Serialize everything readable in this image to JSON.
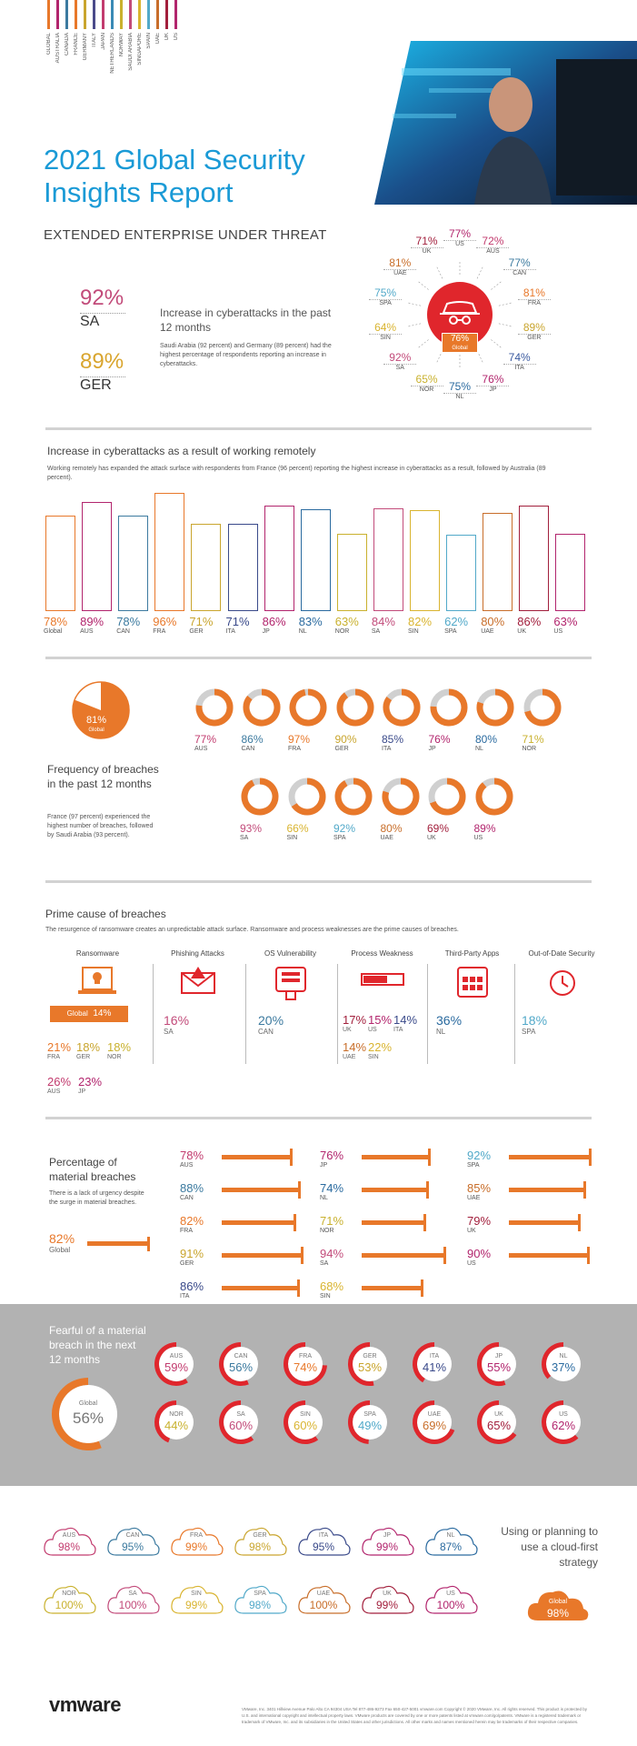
{
  "header": {
    "title_line1": "2021 Global Security",
    "title_line2": "Insights Report",
    "subtitle": "EXTENDED ENTERPRISE UNDER THREAT",
    "country_list": [
      "GLOBAL",
      "AUSTRALIA",
      "CANADA",
      "FRANCE",
      "GERMANY",
      "ITALY",
      "JAPAN",
      "NETHERLANDS",
      "NORWAY",
      "SAUDI ARABIA",
      "SINGAPORE",
      "SPAIN",
      "UAE",
      "UK",
      "US"
    ],
    "stripe_colors": [
      "#e8782a",
      "#b2256d",
      "#3c7a9f",
      "#e8782a",
      "#c9a52e",
      "#4a4a8a",
      "#c23b6e",
      "#3a8ab5",
      "#c9b12e",
      "#c24b7a",
      "#d9b430",
      "#52a9c9",
      "#c86e2a",
      "#a21f3c",
      "#b2256d"
    ]
  },
  "intro": {
    "stat1_value": "92%",
    "stat1_label": "SA",
    "stat2_value": "89%",
    "stat2_label": "GER",
    "headline": "Increase in cyberattacks in the past 12 months",
    "body": "Saudi Arabia (92 percent) and Germany (89 percent) had the highest percentage of respondents reporting an increase in cyberattacks.",
    "center_value": "76%",
    "center_label": "Global",
    "ring": [
      {
        "v": "77%",
        "c": "US",
        "color": "#b2256d"
      },
      {
        "v": "72%",
        "c": "AUS",
        "color": "#c23b6e"
      },
      {
        "v": "77%",
        "c": "CAN",
        "color": "#3c7a9f"
      },
      {
        "v": "81%",
        "c": "FRA",
        "color": "#e8782a"
      },
      {
        "v": "89%",
        "c": "GER",
        "color": "#c9a52e"
      },
      {
        "v": "74%",
        "c": "ITA",
        "color": "#3a5a9f"
      },
      {
        "v": "76%",
        "c": "JP",
        "color": "#b2256d"
      },
      {
        "v": "75%",
        "c": "NL",
        "color": "#2a6a9f"
      },
      {
        "v": "65%",
        "c": "NOR",
        "color": "#c9b12e"
      },
      {
        "v": "92%",
        "c": "SA",
        "color": "#c24b7a"
      },
      {
        "v": "64%",
        "c": "SIN",
        "color": "#d9b430"
      },
      {
        "v": "75%",
        "c": "SPA",
        "color": "#52a9c9"
      },
      {
        "v": "81%",
        "c": "UAE",
        "color": "#c86e2a"
      },
      {
        "v": "71%",
        "c": "UK",
        "color": "#a21f3c"
      }
    ]
  },
  "remote": {
    "title": "Increase in cyberattacks as a result of working remotely",
    "body": "Working remotely has expanded the attack surface with respondents from France (96 percent) reporting the highest increase in cyberattacks as a result, followed by Australia (89 percent).",
    "bars": [
      {
        "v": "78%",
        "n": 78,
        "c": "Global",
        "color": "#e8782a"
      },
      {
        "v": "89%",
        "n": 89,
        "c": "AUS",
        "color": "#b2256d"
      },
      {
        "v": "78%",
        "n": 78,
        "c": "CAN",
        "color": "#3c7a9f"
      },
      {
        "v": "96%",
        "n": 96,
        "c": "FRA",
        "color": "#e8782a"
      },
      {
        "v": "71%",
        "n": 71,
        "c": "GER",
        "color": "#c9a52e"
      },
      {
        "v": "71%",
        "n": 71,
        "c": "ITA",
        "color": "#3a4a8a"
      },
      {
        "v": "86%",
        "n": 86,
        "c": "JP",
        "color": "#b2256d"
      },
      {
        "v": "83%",
        "n": 83,
        "c": "NL",
        "color": "#2a6a9f"
      },
      {
        "v": "63%",
        "n": 63,
        "c": "NOR",
        "color": "#c9b12e"
      },
      {
        "v": "84%",
        "n": 84,
        "c": "SA",
        "color": "#c24b7a"
      },
      {
        "v": "82%",
        "n": 82,
        "c": "SIN",
        "color": "#d9b430"
      },
      {
        "v": "62%",
        "n": 62,
        "c": "SPA",
        "color": "#52a9c9"
      },
      {
        "v": "80%",
        "n": 80,
        "c": "UAE",
        "color": "#c86e2a"
      },
      {
        "v": "86%",
        "n": 86,
        "c": "UK",
        "color": "#a21f3c"
      },
      {
        "v": "63%",
        "n": 63,
        "c": "US",
        "color": "#b2256d"
      }
    ]
  },
  "breaches": {
    "global_value": "81%",
    "global_label": "Global",
    "global_n": 81,
    "title": "Frequency of breaches in the past 12 months",
    "body": "France (97 percent) experienced the highest number of breaches, followed by Saudi Arabia (93 percent).",
    "row1": [
      {
        "v": "77%",
        "n": 77,
        "c": "AUS",
        "color": "#c23b6e"
      },
      {
        "v": "86%",
        "n": 86,
        "c": "CAN",
        "color": "#3c7a9f"
      },
      {
        "v": "97%",
        "n": 97,
        "c": "FRA",
        "color": "#e8782a"
      },
      {
        "v": "90%",
        "n": 90,
        "c": "GER",
        "color": "#c9a52e"
      },
      {
        "v": "85%",
        "n": 85,
        "c": "ITA",
        "color": "#3a4a8a"
      },
      {
        "v": "76%",
        "n": 76,
        "c": "JP",
        "color": "#b2256d"
      },
      {
        "v": "80%",
        "n": 80,
        "c": "NL",
        "color": "#2a6a9f"
      },
      {
        "v": "71%",
        "n": 71,
        "c": "NOR",
        "color": "#c9b12e"
      }
    ],
    "row2": [
      {
        "v": "93%",
        "n": 93,
        "c": "SA",
        "color": "#c24b7a"
      },
      {
        "v": "66%",
        "n": 66,
        "c": "SIN",
        "color": "#d9b430"
      },
      {
        "v": "92%",
        "n": 92,
        "c": "SPA",
        "color": "#52a9c9"
      },
      {
        "v": "80%",
        "n": 80,
        "c": "UAE",
        "color": "#c86e2a"
      },
      {
        "v": "69%",
        "n": 69,
        "c": "UK",
        "color": "#a21f3c"
      },
      {
        "v": "89%",
        "n": 89,
        "c": "US",
        "color": "#b2256d"
      }
    ]
  },
  "prime": {
    "title": "Prime cause of breaches",
    "body": "The resurgence of ransomware creates an unpredictable attack surface.  Ransomware and process weaknesses are the prime causes of breaches.",
    "ransomware": {
      "h": "Ransomware",
      "global_label": "Global",
      "global_value": "14%",
      "stats": [
        {
          "v": "21%",
          "c": "FRA",
          "color": "#e8782a"
        },
        {
          "v": "18%",
          "c": "GER",
          "color": "#c9a52e"
        },
        {
          "v": "18%",
          "c": "NOR",
          "color": "#c9b12e"
        },
        {
          "v": "26%",
          "c": "AUS",
          "color": "#c23b6e"
        },
        {
          "v": "23%",
          "c": "JP",
          "color": "#b2256d"
        }
      ]
    },
    "phishing": {
      "h": "Phishing Attacks",
      "v": "16%",
      "c": "SA",
      "color": "#c24b7a"
    },
    "os": {
      "h": "OS Vulnerability",
      "v": "20%",
      "c": "CAN",
      "color": "#3c7a9f"
    },
    "process": {
      "h": "Process Weakness",
      "stats": [
        {
          "v": "17%",
          "c": "UK",
          "color": "#a21f3c"
        },
        {
          "v": "15%",
          "c": "US",
          "color": "#b2256d"
        },
        {
          "v": "14%",
          "c": "ITA",
          "color": "#3a4a8a"
        },
        {
          "v": "14%",
          "c": "UAE",
          "color": "#c86e2a"
        },
        {
          "v": "22%",
          "c": "SIN",
          "color": "#d9b430"
        }
      ]
    },
    "thirdparty": {
      "h": "Third-Party Apps",
      "v": "36%",
      "c": "NL",
      "color": "#2a6a9f"
    },
    "outofdate": {
      "h": "Out-of-Date Security",
      "v": "18%",
      "c": "SPA",
      "color": "#52a9c9"
    }
  },
  "material": {
    "title": "Percentage of material breaches",
    "body": "There is a lack of urgency despite the surge in material breaches.",
    "global_value": "82%",
    "global_label": "Global",
    "global_n": 82,
    "col1": [
      {
        "v": "78%",
        "n": 78,
        "c": "AUS",
        "color": "#c23b6e"
      },
      {
        "v": "88%",
        "n": 88,
        "c": "CAN",
        "color": "#3c7a9f"
      },
      {
        "v": "82%",
        "n": 82,
        "c": "FRA",
        "color": "#e8782a"
      },
      {
        "v": "91%",
        "n": 91,
        "c": "GER",
        "color": "#c9a52e"
      },
      {
        "v": "86%",
        "n": 86,
        "c": "ITA",
        "color": "#3a4a8a"
      }
    ],
    "col2": [
      {
        "v": "76%",
        "n": 76,
        "c": "JP",
        "color": "#b2256d"
      },
      {
        "v": "74%",
        "n": 74,
        "c": "NL",
        "color": "#2a6a9f"
      },
      {
        "v": "71%",
        "n": 71,
        "c": "NOR",
        "color": "#c9b12e"
      },
      {
        "v": "94%",
        "n": 94,
        "c": "SA",
        "color": "#c24b7a"
      },
      {
        "v": "68%",
        "n": 68,
        "c": "SIN",
        "color": "#d9b430"
      }
    ],
    "col3": [
      {
        "v": "92%",
        "n": 92,
        "c": "SPA",
        "color": "#52a9c9"
      },
      {
        "v": "85%",
        "n": 85,
        "c": "UAE",
        "color": "#c86e2a"
      },
      {
        "v": "79%",
        "n": 79,
        "c": "UK",
        "color": "#a21f3c"
      },
      {
        "v": "90%",
        "n": 90,
        "c": "US",
        "color": "#b2256d"
      }
    ]
  },
  "fearful": {
    "title": "Fearful of a material breach in the next 12 months",
    "global_value": "56%",
    "global_label": "Global",
    "global_n": 56,
    "row1": [
      {
        "v": "59%",
        "n": 59,
        "c": "AUS",
        "color": "#c23b6e"
      },
      {
        "v": "56%",
        "n": 56,
        "c": "CAN",
        "color": "#3c7a9f"
      },
      {
        "v": "74%",
        "n": 74,
        "c": "FRA",
        "color": "#e8782a"
      },
      {
        "v": "53%",
        "n": 53,
        "c": "GER",
        "color": "#c9a52e"
      },
      {
        "v": "41%",
        "n": 41,
        "c": "ITA",
        "color": "#3a4a8a"
      },
      {
        "v": "55%",
        "n": 55,
        "c": "JP",
        "color": "#b2256d"
      },
      {
        "v": "37%",
        "n": 37,
        "c": "NL",
        "color": "#2a6a9f"
      }
    ],
    "row2": [
      {
        "v": "44%",
        "n": 44,
        "c": "NOR",
        "color": "#c9b12e"
      },
      {
        "v": "60%",
        "n": 60,
        "c": "SA",
        "color": "#c24b7a"
      },
      {
        "v": "60%",
        "n": 60,
        "c": "SIN",
        "color": "#d9b430"
      },
      {
        "v": "49%",
        "n": 49,
        "c": "SPA",
        "color": "#52a9c9"
      },
      {
        "v": "69%",
        "n": 69,
        "c": "UAE",
        "color": "#c86e2a"
      },
      {
        "v": "65%",
        "n": 65,
        "c": "UK",
        "color": "#a21f3c"
      },
      {
        "v": "62%",
        "n": 62,
        "c": "US",
        "color": "#b2256d"
      }
    ]
  },
  "cloud": {
    "title": "Using or planning to use a cloud-first strategy",
    "global_value": "98%",
    "global_label": "Global",
    "row1": [
      {
        "v": "98%",
        "c": "AUS",
        "color": "#c23b6e"
      },
      {
        "v": "95%",
        "c": "CAN",
        "color": "#3c7a9f"
      },
      {
        "v": "99%",
        "c": "FRA",
        "color": "#e8782a"
      },
      {
        "v": "98%",
        "c": "GER",
        "color": "#c9a52e"
      },
      {
        "v": "95%",
        "c": "ITA",
        "color": "#3a4a8a"
      },
      {
        "v": "99%",
        "c": "JP",
        "color": "#b2256d"
      },
      {
        "v": "87%",
        "c": "NL",
        "color": "#2a6a9f"
      }
    ],
    "row2": [
      {
        "v": "100%",
        "c": "NOR",
        "color": "#c9b12e"
      },
      {
        "v": "100%",
        "c": "SA",
        "color": "#c24b7a"
      },
      {
        "v": "99%",
        "c": "SIN",
        "color": "#d9b430"
      },
      {
        "v": "98%",
        "c": "SPA",
        "color": "#52a9c9"
      },
      {
        "v": "100%",
        "c": "UAE",
        "color": "#c86e2a"
      },
      {
        "v": "99%",
        "c": "UK",
        "color": "#a21f3c"
      },
      {
        "v": "100%",
        "c": "US",
        "color": "#b2256d"
      }
    ]
  },
  "footer": {
    "logo": "vmware",
    "legal": "VMware, Inc. 3401 Hillview Avenue Palo Alto CA 94304 USA Tel 877-486-9273 Fax 650-427-5001 vmware.com Copyright © 2020 VMware, Inc. All rights reserved. This product is protected by U.S. and international copyright and intellectual property laws. VMware products are covered by one or more patents listed at vmware.com/go/patents. VMware is a registered trademark or trademark of VMware, Inc. and its subsidiaries in the United States and other jurisdictions. All other marks and names mentioned herein may be trademarks of their respective companies."
  },
  "colors": {
    "accent_orange": "#e8782a",
    "title_blue": "#1a9ad6",
    "red": "#e0262c",
    "band_gray": "#b2b2b2"
  }
}
